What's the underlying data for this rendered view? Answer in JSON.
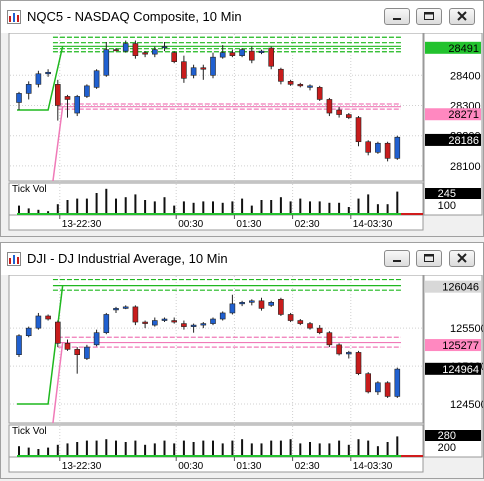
{
  "windows": [
    {
      "title": "NQC5 - NASDAQ Composite, 10 Min",
      "controls": [
        "minimize-icon",
        "restore-icon",
        "close-icon"
      ],
      "price_axis": {
        "ticks": [
          "28400",
          "28300",
          "28200",
          "28100"
        ],
        "tags": [
          {
            "label": "28491",
            "bg": "#22c22e",
            "fg": "#000000"
          },
          {
            "label": "28271",
            "bg": "#ff88c0",
            "fg": "#000000"
          },
          {
            "label": "28186",
            "bg": "#000000",
            "fg": "#ffffff"
          }
        ]
      },
      "volume_panel": {
        "label": "Tick Vol",
        "tag": "245",
        "tick": "100"
      },
      "time_axis": [
        "13-22:30",
        "00:30",
        "01:30",
        "02:30",
        "14-03:30"
      ],
      "colors": {
        "up": "#2060d0",
        "down": "#c81c1c",
        "green_line": "#1fb81f",
        "pink_line": "#f07ab8"
      },
      "chart_data": {
        "type": "candlestick",
        "ylim": [
          28050,
          28540
        ],
        "candles": [
          {
            "o": 28310,
            "h": 28345,
            "l": 28285,
            "c": 28340
          },
          {
            "o": 28340,
            "h": 28380,
            "l": 28320,
            "c": 28370
          },
          {
            "o": 28370,
            "h": 28415,
            "l": 28360,
            "c": 28405
          },
          {
            "o": 28405,
            "h": 28420,
            "l": 28395,
            "c": 28410
          },
          {
            "o": 28370,
            "h": 28385,
            "l": 28250,
            "c": 28300
          },
          {
            "o": 28330,
            "h": 28335,
            "l": 28260,
            "c": 28320
          },
          {
            "o": 28275,
            "h": 28335,
            "l": 28265,
            "c": 28330
          },
          {
            "o": 28330,
            "h": 28370,
            "l": 28325,
            "c": 28365
          },
          {
            "o": 28360,
            "h": 28420,
            "l": 28355,
            "c": 28415
          },
          {
            "o": 28400,
            "h": 28510,
            "l": 28395,
            "c": 28485
          },
          {
            "o": 28485,
            "h": 28490,
            "l": 28480,
            "c": 28483
          },
          {
            "o": 28480,
            "h": 28515,
            "l": 28475,
            "c": 28505
          },
          {
            "o": 28505,
            "h": 28515,
            "l": 28455,
            "c": 28465
          },
          {
            "o": 28475,
            "h": 28480,
            "l": 28460,
            "c": 28470
          },
          {
            "o": 28470,
            "h": 28495,
            "l": 28460,
            "c": 28485
          },
          {
            "o": 28495,
            "h": 28510,
            "l": 28480,
            "c": 28495
          },
          {
            "o": 28475,
            "h": 28480,
            "l": 28440,
            "c": 28445
          },
          {
            "o": 28445,
            "h": 28465,
            "l": 28375,
            "c": 28390
          },
          {
            "o": 28400,
            "h": 28435,
            "l": 28390,
            "c": 28425
          },
          {
            "o": 28425,
            "h": 28435,
            "l": 28385,
            "c": 28420
          },
          {
            "o": 28400,
            "h": 28475,
            "l": 28390,
            "c": 28460
          },
          {
            "o": 28460,
            "h": 28500,
            "l": 28455,
            "c": 28475
          },
          {
            "o": 28475,
            "h": 28485,
            "l": 28460,
            "c": 28465
          },
          {
            "o": 28465,
            "h": 28490,
            "l": 28460,
            "c": 28485
          },
          {
            "o": 28480,
            "h": 28495,
            "l": 28440,
            "c": 28450
          },
          {
            "o": 28475,
            "h": 28485,
            "l": 28470,
            "c": 28480
          },
          {
            "o": 28490,
            "h": 28495,
            "l": 28420,
            "c": 28430
          },
          {
            "o": 28420,
            "h": 28425,
            "l": 28370,
            "c": 28380
          },
          {
            "o": 28380,
            "h": 28385,
            "l": 28365,
            "c": 28370
          },
          {
            "o": 28370,
            "h": 28375,
            "l": 28360,
            "c": 28365
          },
          {
            "o": 28360,
            "h": 28370,
            "l": 28350,
            "c": 28365
          },
          {
            "o": 28360,
            "h": 28365,
            "l": 28315,
            "c": 28320
          },
          {
            "o": 28320,
            "h": 28325,
            "l": 28265,
            "c": 28275
          },
          {
            "o": 28285,
            "h": 28295,
            "l": 28260,
            "c": 28270
          },
          {
            "o": 28270,
            "h": 28275,
            "l": 28255,
            "c": 28260
          },
          {
            "o": 28260,
            "h": 28265,
            "l": 28165,
            "c": 28180
          },
          {
            "o": 28180,
            "h": 28185,
            "l": 28135,
            "c": 28145
          },
          {
            "o": 28145,
            "h": 28180,
            "l": 28140,
            "c": 28175
          },
          {
            "o": 28175,
            "h": 28180,
            "l": 28115,
            "c": 28125
          },
          {
            "o": 28125,
            "h": 28200,
            "l": 28120,
            "c": 28195
          }
        ],
        "volume": [
          30,
          20,
          15,
          10,
          35,
          50,
          55,
          55,
          75,
          90,
          55,
          60,
          70,
          50,
          45,
          60,
          30,
          45,
          40,
          45,
          45,
          40,
          45,
          55,
          30,
          50,
          50,
          60,
          45,
          55,
          45,
          45,
          40,
          40,
          25,
          55,
          70,
          35,
          35,
          80
        ],
        "volume_max": 100,
        "levels": {
          "green": [
            28478,
            28488,
            28496,
            28508,
            28526
          ],
          "pink": [
            28288,
            28296,
            28305
          ]
        }
      }
    },
    {
      "title": "DJI - DJ Industrial Average, 10 Min",
      "controls": [
        "minimize-icon",
        "restore-icon",
        "close-icon"
      ],
      "price_axis": {
        "ticks": [
          "125500",
          "125000",
          "124500"
        ],
        "tags": [
          {
            "label": "126046",
            "bg": "#d8d8d8",
            "fg": "#000000"
          },
          {
            "label": "125277",
            "bg": "#ff88c0",
            "fg": "#000000"
          },
          {
            "label": "124964",
            "bg": "#000000",
            "fg": "#ffffff"
          }
        ]
      },
      "volume_panel": {
        "label": "Tick Vol",
        "tag": "280",
        "tick": "200"
      },
      "time_axis": [
        "13-22:30",
        "00:30",
        "01:30",
        "02:30",
        "14-03:30"
      ],
      "colors": {
        "up": "#2060d0",
        "down": "#c81c1c",
        "green_line": "#1fb81f",
        "pink_line": "#f07ab8"
      },
      "chart_data": {
        "type": "candlestick",
        "ylim": [
          124250,
          126200
        ],
        "candles": [
          {
            "o": 125150,
            "h": 125420,
            "l": 125120,
            "c": 125400
          },
          {
            "o": 125400,
            "h": 125520,
            "l": 125380,
            "c": 125500
          },
          {
            "o": 125500,
            "h": 125700,
            "l": 125480,
            "c": 125660
          },
          {
            "o": 125660,
            "h": 125680,
            "l": 125600,
            "c": 125620
          },
          {
            "o": 125580,
            "h": 125600,
            "l": 125250,
            "c": 125300
          },
          {
            "o": 125300,
            "h": 125350,
            "l": 125200,
            "c": 125220
          },
          {
            "o": 125220,
            "h": 125250,
            "l": 124900,
            "c": 125150
          },
          {
            "o": 125100,
            "h": 125280,
            "l": 125080,
            "c": 125250
          },
          {
            "o": 125280,
            "h": 125480,
            "l": 125260,
            "c": 125440
          },
          {
            "o": 125440,
            "h": 125700,
            "l": 125420,
            "c": 125680
          },
          {
            "o": 125740,
            "h": 125780,
            "l": 125700,
            "c": 125760
          },
          {
            "o": 125760,
            "h": 125800,
            "l": 125750,
            "c": 125780
          },
          {
            "o": 125780,
            "h": 125800,
            "l": 125540,
            "c": 125580
          },
          {
            "o": 125580,
            "h": 125600,
            "l": 125500,
            "c": 125560
          },
          {
            "o": 125540,
            "h": 125640,
            "l": 125520,
            "c": 125600
          },
          {
            "o": 125600,
            "h": 125640,
            "l": 125580,
            "c": 125620
          },
          {
            "o": 125600,
            "h": 125640,
            "l": 125560,
            "c": 125580
          },
          {
            "o": 125560,
            "h": 125600,
            "l": 125480,
            "c": 125520
          },
          {
            "o": 125520,
            "h": 125560,
            "l": 125440,
            "c": 125540
          },
          {
            "o": 125540,
            "h": 125580,
            "l": 125500,
            "c": 125560
          },
          {
            "o": 125560,
            "h": 125640,
            "l": 125540,
            "c": 125620
          },
          {
            "o": 125620,
            "h": 125720,
            "l": 125600,
            "c": 125700
          },
          {
            "o": 125700,
            "h": 125940,
            "l": 125680,
            "c": 125820
          },
          {
            "o": 125820,
            "h": 125860,
            "l": 125790,
            "c": 125840
          },
          {
            "o": 125840,
            "h": 125880,
            "l": 125800,
            "c": 125860
          },
          {
            "o": 125860,
            "h": 125900,
            "l": 125730,
            "c": 125760
          },
          {
            "o": 125800,
            "h": 125860,
            "l": 125780,
            "c": 125840
          },
          {
            "o": 125880,
            "h": 125900,
            "l": 125660,
            "c": 125680
          },
          {
            "o": 125680,
            "h": 125700,
            "l": 125580,
            "c": 125600
          },
          {
            "o": 125600,
            "h": 125620,
            "l": 125540,
            "c": 125560
          },
          {
            "o": 125560,
            "h": 125580,
            "l": 125480,
            "c": 125500
          },
          {
            "o": 125500,
            "h": 125540,
            "l": 125420,
            "c": 125440
          },
          {
            "o": 125440,
            "h": 125460,
            "l": 125250,
            "c": 125280
          },
          {
            "o": 125280,
            "h": 125300,
            "l": 125140,
            "c": 125160
          },
          {
            "o": 125160,
            "h": 125200,
            "l": 125100,
            "c": 125180
          },
          {
            "o": 125180,
            "h": 125200,
            "l": 124880,
            "c": 124900
          },
          {
            "o": 124900,
            "h": 124920,
            "l": 124640,
            "c": 124660
          },
          {
            "o": 124660,
            "h": 124800,
            "l": 124620,
            "c": 124780
          },
          {
            "o": 124780,
            "h": 124800,
            "l": 124580,
            "c": 124600
          },
          {
            "o": 124600,
            "h": 124980,
            "l": 124580,
            "c": 124960
          }
        ],
        "volume": [
          35,
          30,
          25,
          30,
          40,
          45,
          50,
          55,
          55,
          60,
          55,
          50,
          55,
          40,
          45,
          55,
          45,
          55,
          50,
          55,
          55,
          45,
          55,
          60,
          45,
          45,
          55,
          55,
          60,
          45,
          50,
          45,
          45,
          55,
          40,
          60,
          55,
          35,
          50,
          70
        ],
        "volume_max": 100,
        "levels": {
          "green": [
            126000,
            126060,
            126140
          ],
          "pink": [
            125250,
            125310,
            125380
          ]
        }
      }
    }
  ]
}
